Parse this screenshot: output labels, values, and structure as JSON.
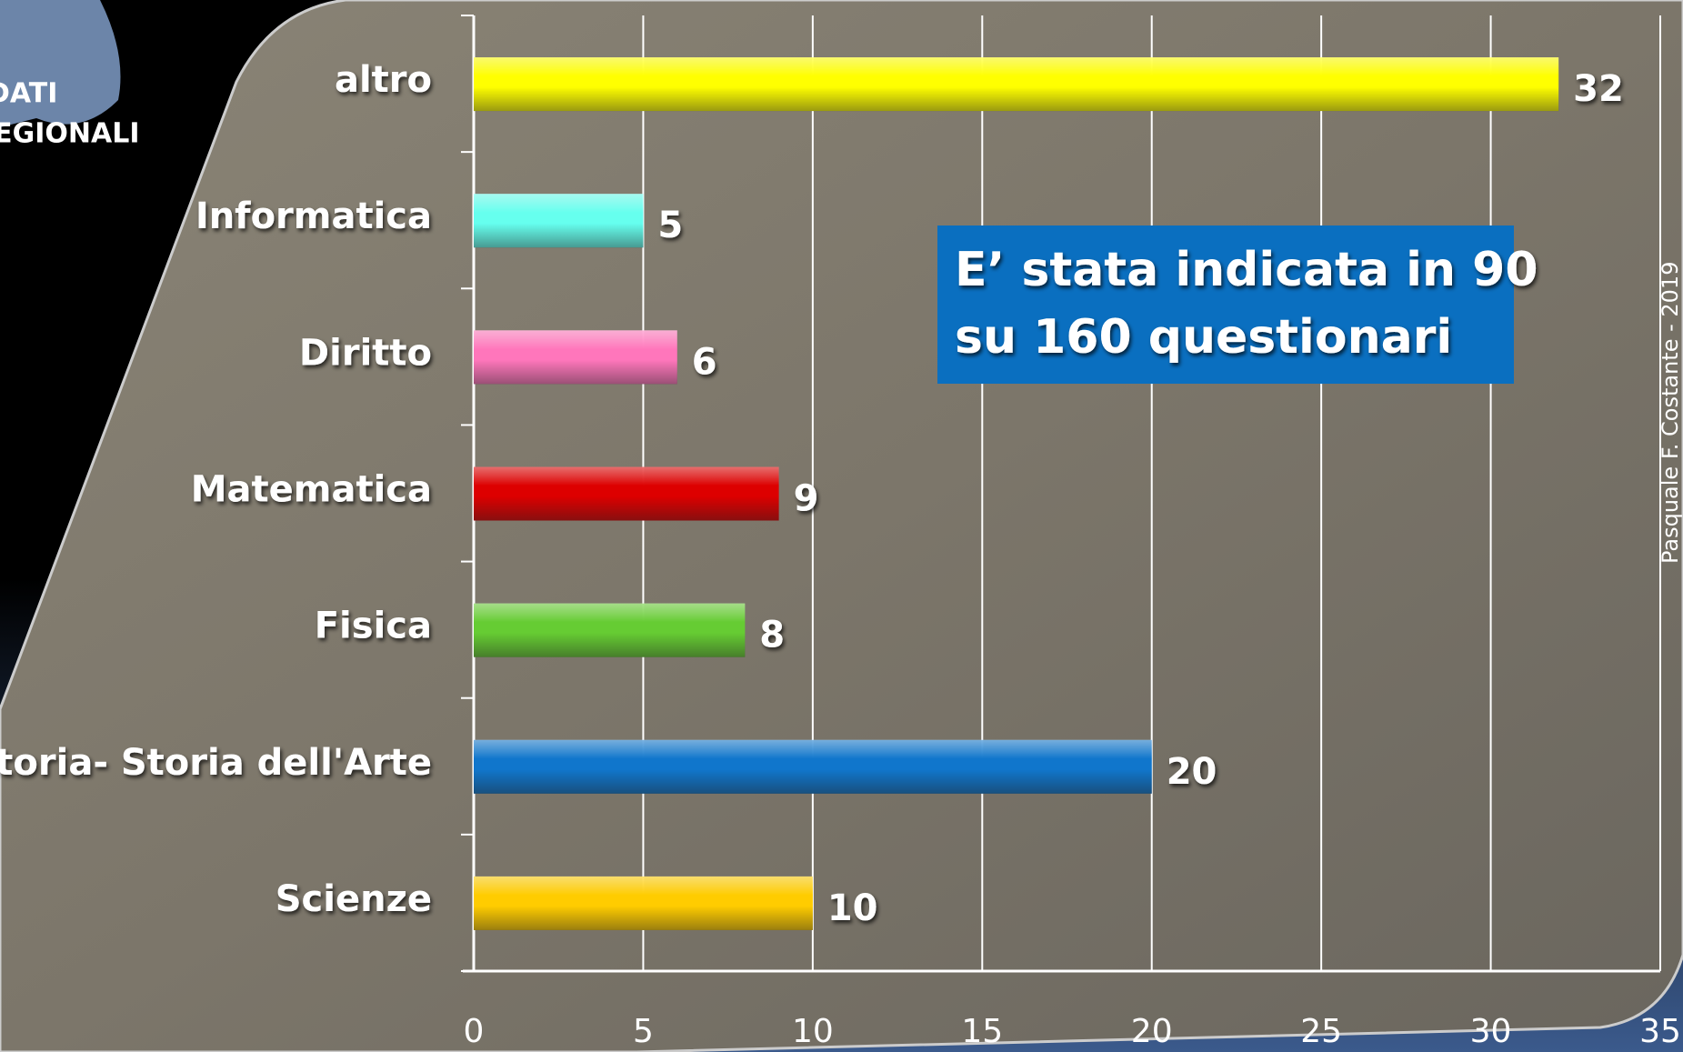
{
  "chart_data": {
    "type": "bar",
    "orientation": "horizontal",
    "categories": [
      "altro",
      "Informatica",
      "Diritto",
      "Matematica",
      "Fisica",
      "Storia- Storia dell'Arte",
      "Scienze"
    ],
    "values": [
      32,
      5,
      6,
      9,
      8,
      20,
      10
    ],
    "colors": [
      "#ffff00",
      "#66ffee",
      "#ff77bb",
      "#dd0000",
      "#66cc33",
      "#1177cc",
      "#ffcc00"
    ],
    "xlim": [
      0,
      35
    ],
    "xticks": [
      0,
      5,
      10,
      15,
      20,
      25,
      30,
      35
    ],
    "grid": true,
    "annotation": [
      "E’ stata indicata in 90",
      "su 160 questionari"
    ]
  },
  "logo": [
    "DATI",
    "REGIONALI"
  ],
  "credit": "Pasquale F. Costante - 2019"
}
